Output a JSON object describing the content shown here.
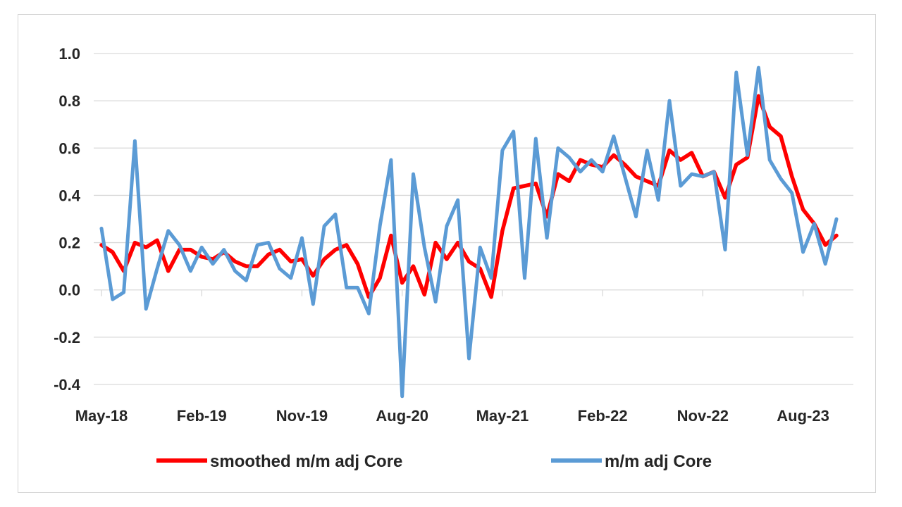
{
  "chart_data": {
    "type": "line",
    "title": "",
    "xlabel": "",
    "ylabel": "",
    "ylim": [
      -0.4,
      1.0
    ],
    "y_ticks": [
      "1.0",
      "0.8",
      "0.6",
      "0.4",
      "0.2",
      "0.0",
      "-0.2",
      "-0.4"
    ],
    "x_tick_labels": [
      "May-18",
      "Feb-19",
      "Nov-19",
      "Aug-20",
      "May-21",
      "Feb-22",
      "Nov-22",
      "Aug-23"
    ],
    "x_start": "May-18",
    "x_end": "Dec-23",
    "grid": "horizontal",
    "legend": "bottom",
    "series": [
      {
        "name": "smoothed m/m adj Core",
        "color": "#ff0000",
        "values": [
          0.19,
          0.16,
          0.08,
          0.2,
          0.18,
          0.21,
          0.08,
          0.17,
          0.17,
          0.14,
          0.13,
          0.16,
          0.12,
          0.1,
          0.1,
          0.15,
          0.17,
          0.12,
          0.13,
          0.06,
          0.13,
          0.17,
          0.19,
          0.11,
          -0.03,
          0.05,
          0.23,
          0.03,
          0.1,
          -0.02,
          0.2,
          0.13,
          0.2,
          0.12,
          0.09,
          -0.03,
          0.25,
          0.43,
          0.44,
          0.45,
          0.31,
          0.49,
          0.46,
          0.55,
          0.53,
          0.52,
          0.57,
          0.53,
          0.48,
          0.46,
          0.44,
          0.59,
          0.55,
          0.58,
          0.48,
          0.5,
          0.39,
          0.53,
          0.56,
          0.82,
          0.69,
          0.65,
          0.48,
          0.34,
          0.28,
          0.19,
          0.23
        ]
      },
      {
        "name": "m/m adj Core",
        "color": "#5b9bd5",
        "values": [
          0.26,
          -0.04,
          -0.01,
          0.63,
          -0.08,
          0.09,
          0.25,
          0.19,
          0.08,
          0.18,
          0.11,
          0.17,
          0.08,
          0.04,
          0.19,
          0.2,
          0.09,
          0.05,
          0.22,
          -0.06,
          0.27,
          0.32,
          0.01,
          0.01,
          -0.1,
          0.27,
          0.55,
          -0.45,
          0.49,
          0.18,
          -0.05,
          0.27,
          0.38,
          -0.29,
          0.18,
          0.05,
          0.59,
          0.67,
          0.05,
          0.64,
          0.22,
          0.6,
          0.56,
          0.5,
          0.55,
          0.5,
          0.65,
          0.48,
          0.31,
          0.59,
          0.38,
          0.8,
          0.44,
          0.49,
          0.48,
          0.5,
          0.17,
          0.92,
          0.57,
          0.94,
          0.55,
          0.47,
          0.41,
          0.16,
          0.28,
          0.11,
          0.3
        ]
      }
    ]
  }
}
